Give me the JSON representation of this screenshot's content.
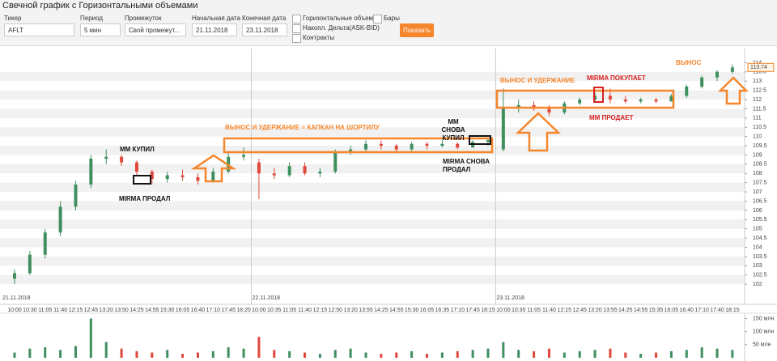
{
  "toolbar": {
    "title": "Свечной график с Горизонтальными объемами",
    "ticker_label": "Тикер",
    "ticker": "AFLT",
    "period_label": "Период",
    "period": "5 мин",
    "range_label": "Промежуток",
    "range": "Свой промежут...",
    "start_label": "Начальная дата",
    "start": "21.11.2018",
    "end_label": "Конечная дата",
    "end": "23.11.2018",
    "options": [
      "Горизонтальные объемы",
      "Бары",
      "Накопл. Дельта(ASK-BID)",
      "Контракты"
    ],
    "button": "Показать"
  },
  "chart_data": {
    "type": "candlestick",
    "x": [
      "10:00",
      "10:30",
      "11:05",
      "11:40",
      "12:15",
      "12:45",
      "13:20",
      "13:50",
      "14:25",
      "14:55",
      "15:30",
      "16:05",
      "16:40",
      "17:10",
      "17:45",
      "18:20",
      "10:00",
      "10:35",
      "11:05",
      "11:40",
      "12:15",
      "12:50",
      "13:20",
      "13:55",
      "14:25",
      "14:55",
      "15:30",
      "16:05",
      "16:35",
      "17:10",
      "17:45",
      "18:15",
      "10:00",
      "10:35",
      "11:05",
      "11:40",
      "12:15",
      "12:45",
      "13:20",
      "13:55",
      "14:25",
      "14:55",
      "15:35",
      "16:05",
      "16:40",
      "17:10",
      "17:40",
      "18:15"
    ],
    "dates": [
      "21.11.2018",
      "22.11.2018",
      "23.11.2018"
    ],
    "ohlc": [
      [
        102.3,
        102.8,
        102.0,
        102.6
      ],
      [
        102.6,
        103.8,
        102.5,
        103.6
      ],
      [
        103.6,
        105.0,
        103.4,
        104.8
      ],
      [
        104.8,
        106.5,
        104.6,
        106.2
      ],
      [
        106.2,
        107.6,
        106.0,
        107.4
      ],
      [
        107.4,
        109.0,
        107.2,
        108.8
      ],
      [
        108.8,
        109.3,
        108.5,
        108.9
      ],
      [
        108.9,
        109.0,
        108.4,
        108.6
      ],
      [
        108.6,
        108.7,
        107.9,
        108.1
      ],
      [
        108.1,
        108.2,
        107.4,
        107.7
      ],
      [
        107.7,
        108.1,
        107.5,
        107.9
      ],
      [
        107.9,
        108.2,
        107.6,
        107.8
      ],
      [
        107.8,
        108.0,
        107.4,
        107.6
      ],
      [
        107.6,
        108.3,
        107.5,
        108.1
      ],
      [
        108.1,
        109.1,
        108.0,
        108.9
      ],
      [
        108.9,
        109.4,
        108.7,
        109.0
      ],
      [
        108.6,
        108.8,
        106.6,
        108.0
      ],
      [
        108.0,
        108.3,
        107.7,
        107.9
      ],
      [
        107.9,
        108.6,
        107.8,
        108.4
      ],
      [
        108.4,
        108.6,
        107.9,
        108.0
      ],
      [
        108.0,
        108.3,
        107.8,
        108.1
      ],
      [
        108.1,
        109.3,
        108.0,
        109.2
      ],
      [
        109.2,
        109.5,
        109.0,
        109.3
      ],
      [
        109.3,
        109.8,
        109.2,
        109.6
      ],
      [
        109.6,
        109.8,
        109.3,
        109.5
      ],
      [
        109.5,
        109.6,
        109.1,
        109.3
      ],
      [
        109.3,
        109.7,
        109.2,
        109.6
      ],
      [
        109.6,
        109.7,
        109.3,
        109.5
      ],
      [
        109.5,
        109.8,
        109.4,
        109.6
      ],
      [
        109.6,
        109.7,
        109.3,
        109.4
      ],
      [
        109.4,
        109.8,
        109.4,
        109.7
      ],
      [
        109.7,
        109.9,
        109.5,
        109.8
      ],
      [
        109.3,
        112.6,
        109.2,
        111.6
      ],
      [
        111.6,
        112.0,
        111.3,
        111.7
      ],
      [
        111.7,
        111.9,
        111.4,
        111.5
      ],
      [
        111.5,
        111.7,
        111.1,
        111.3
      ],
      [
        111.3,
        111.9,
        111.2,
        111.8
      ],
      [
        111.8,
        112.1,
        111.7,
        112.0
      ],
      [
        112.0,
        112.4,
        111.9,
        112.2
      ],
      [
        112.2,
        112.6,
        111.8,
        112.0
      ],
      [
        112.0,
        112.2,
        111.8,
        111.9
      ],
      [
        111.9,
        112.1,
        111.8,
        112.0
      ],
      [
        112.0,
        112.1,
        111.8,
        111.9
      ],
      [
        111.9,
        112.3,
        111.9,
        112.2
      ],
      [
        112.2,
        112.8,
        112.1,
        112.7
      ],
      [
        112.7,
        113.3,
        112.6,
        113.2
      ],
      [
        113.2,
        113.6,
        113.0,
        113.5
      ],
      [
        113.5,
        113.9,
        113.4,
        113.74
      ]
    ],
    "volume": [
      20,
      35,
      40,
      30,
      45,
      150,
      60,
      35,
      25,
      20,
      30,
      15,
      20,
      25,
      40,
      35,
      80,
      30,
      25,
      20,
      15,
      30,
      35,
      20,
      15,
      20,
      25,
      15,
      20,
      25,
      30,
      35,
      60,
      30,
      25,
      35,
      20,
      25,
      30,
      35,
      20,
      15,
      20,
      25,
      30,
      40,
      35,
      30
    ],
    "up_color": "#3f8f5f",
    "down_color": "#e0483c",
    "ylim": [
      101.7,
      114.5
    ],
    "yticks": [
      102,
      102.5,
      103,
      103.5,
      104,
      104.5,
      105,
      105.5,
      106,
      106.5,
      107,
      107.5,
      108,
      108.5,
      109,
      109.5,
      110,
      110.5,
      111,
      111.5,
      112,
      112.5,
      113,
      113.5,
      114
    ],
    "last_price": 113.74,
    "vlim": [
      0,
      170
    ],
    "vticks": [
      {
        "value": 50,
        "label": "50 млн"
      },
      {
        "value": 100,
        "label": "100 млн"
      },
      {
        "value": 150,
        "label": "150 млн"
      }
    ],
    "annotations": [
      "ММ КУПИЛ",
      "MIRMA ПРОДАЛ",
      "ВЫНОС И УДЕРЖАНИЕ = КАПКАН НА ШОРТИЛУ",
      "ММ СНОВА КУПИЛ",
      "MIRMA СНОВА ПРОДАЛ",
      "ВЫНОС И УДЕРЖАНИЕ",
      "MIRMA ПОКУПАЕТ",
      "ММ ПРОДАЕТ",
      "ВЫНОС"
    ]
  }
}
